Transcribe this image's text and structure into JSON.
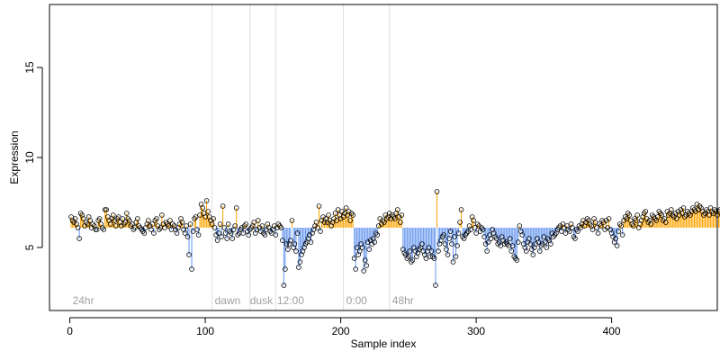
{
  "chart_data": {
    "type": "scatter",
    "title": "",
    "xlabel": "Sample index",
    "ylabel": "Expression",
    "xlim": [
      -15,
      478
    ],
    "ylim": [
      1.5,
      18.5
    ],
    "xticks": [
      0,
      100,
      200,
      300,
      400
    ],
    "yticks": [
      5,
      10,
      15
    ],
    "baseline": 6.1,
    "colors": {
      "above": "#ffa500",
      "below": "#6495ed",
      "point_stroke": "#000000",
      "divider": "#dedede",
      "region_label": "#a0a0a0"
    },
    "dividers": [
      105,
      133,
      152,
      202,
      236
    ],
    "region_labels": [
      {
        "x": 2,
        "text": "24hr"
      },
      {
        "x": 107,
        "text": "dawn"
      },
      {
        "x": 133,
        "text": "dusk"
      },
      {
        "x": 153,
        "text": "12:00"
      },
      {
        "x": 204,
        "text": "0:00"
      },
      {
        "x": 238,
        "text": "48hr"
      }
    ],
    "series": [
      {
        "values": [
          6.7,
          6.5,
          6.4,
          6.6,
          6.3,
          6.1,
          5.5,
          6.9,
          6.8,
          6.6,
          6.2,
          6.4,
          6.3,
          6.7,
          6.5,
          6.1,
          6.3,
          6.2,
          6.0,
          6.0,
          6.5,
          6.6,
          6.3,
          6.1,
          6.0,
          7.1,
          7.1,
          6.7,
          6.5,
          6.3,
          6.6,
          6.8,
          6.5,
          6.2,
          6.6,
          6.7,
          6.4,
          6.2,
          6.6,
          6.3,
          6.4,
          6.9,
          6.6,
          6.5,
          6.2,
          6.3,
          6.0,
          6.1,
          6.4,
          6.6,
          6.2,
          6.1,
          6.0,
          5.9,
          5.8,
          6.1,
          6.3,
          6.5,
          6.2,
          6.0,
          6.3,
          5.8,
          6.5,
          6.6,
          6.2,
          6.0,
          6.1,
          6.8,
          6.3,
          6.1,
          6.4,
          6.3,
          6.2,
          6.5,
          6.0,
          6.3,
          6.2,
          6.0,
          5.8,
          6.1,
          6.3,
          6.6,
          6.4,
          6.0,
          5.8,
          6.2,
          5.6,
          4.6,
          6.3,
          3.8,
          5.9,
          6.6,
          6.7,
          6.0,
          5.7,
          6.8,
          7.4,
          7.2,
          6.9,
          6.7,
          7.6,
          7.0,
          6.7,
          6.5,
          6.3,
          6.6,
          6.1,
          5.7,
          5.4,
          5.8,
          6.3,
          5.6,
          7.3,
          6.1,
          5.8,
          5.5,
          6.3,
          5.9,
          5.8,
          5.5,
          6.0,
          6.2,
          7.2,
          5.7,
          5.8,
          6.0,
          6.1,
          5.8,
          6.2,
          6.3,
          5.9,
          5.7,
          6.0,
          6.1,
          6.2,
          6.4,
          5.8,
          6.0,
          6.5,
          6.1,
          5.9,
          6.2,
          5.8,
          5.7,
          6.0,
          6.3,
          6.1,
          5.9,
          5.8,
          6.0,
          6.2,
          5.7,
          6.1,
          6.3,
          6.2,
          6.1,
          5.4,
          2.9,
          3.8,
          5.2,
          4.9,
          5.2,
          5.4,
          6.5,
          5.0,
          5.2,
          4.8,
          5.8,
          3.9,
          4.2,
          4.6,
          4.8,
          5.0,
          5.2,
          5.3,
          5.5,
          5.7,
          5.3,
          5.8,
          6.0,
          6.2,
          6.4,
          6.1,
          7.3,
          5.9,
          6.5,
          6.7,
          6.4,
          6.6,
          6.4,
          6.8,
          6.5,
          6.2,
          6.4,
          6.6,
          6.9,
          6.5,
          7.1,
          6.8,
          6.6,
          7.0,
          6.7,
          6.9,
          7.2,
          6.8,
          7.0,
          6.5,
          6.9,
          6.8,
          4.4,
          3.8,
          5.0,
          4.6,
          4.8,
          5.2,
          5.0,
          3.7,
          4.3,
          4.0,
          5.3,
          4.9,
          5.4,
          5.2,
          5.5,
          5.3,
          5.8,
          5.7,
          6.2,
          6.6,
          6.3,
          6.5,
          6.4,
          6.8,
          6.6,
          6.7,
          6.9,
          6.6,
          6.8,
          6.7,
          6.6,
          6.9,
          7.1,
          6.7,
          6.4,
          6.8,
          4.9,
          4.7,
          4.6,
          4.4,
          4.5,
          4.8,
          4.2,
          4.3,
          5.0,
          4.8,
          4.5,
          4.7,
          4.9,
          5.0,
          5.2,
          4.8,
          4.6,
          4.4,
          4.8,
          5.0,
          4.5,
          4.8,
          4.5,
          4.4,
          2.9,
          8.1,
          4.8,
          5.2,
          5.4,
          5.6,
          5.7,
          5.2,
          4.9,
          4.6,
          5.5,
          5.9,
          5.2,
          4.2,
          5.6,
          4.5,
          5.1,
          5.8,
          6.4,
          7.1,
          5.6,
          5.5,
          5.7,
          5.8,
          5.9,
          6.2,
          6.0,
          6.7,
          6.5,
          6.1,
          5.8,
          6.3,
          6.2,
          5.9,
          6.1,
          6.0,
          5.6,
          5.2,
          4.8,
          5.3,
          5.7,
          5.5,
          6.0,
          5.8,
          5.6,
          5.5,
          5.2,
          5.3,
          5.1,
          5.6,
          5.4,
          5.2,
          5.3,
          5.2,
          5.1,
          5.5,
          4.8,
          5.1,
          4.5,
          4.4,
          4.3,
          5.3,
          6.2,
          5.9,
          5.7,
          5.2,
          5.0,
          4.8,
          5.3,
          5.5,
          5.2,
          4.9,
          4.6,
          5.0,
          5.2,
          5.5,
          5.3,
          4.8,
          5.1,
          5.2,
          5.6,
          5.3,
          5.0,
          5.5,
          5.4,
          5.2,
          5.8,
          5.6,
          5.7,
          5.8,
          6.0,
          6.1,
          6.2,
          5.9,
          6.3,
          6.1,
          5.8,
          6.2,
          6.0,
          5.9,
          6.3,
          6.1,
          5.6,
          5.5,
          6.0,
          5.9,
          6.2,
          6.1,
          6.3,
          6.5,
          6.2,
          6.4,
          6.6,
          6.5,
          6.3,
          6.2,
          6.0,
          6.6,
          6.4,
          6.1,
          5.8,
          6.3,
          6.2,
          6.5,
          6.4,
          6.0,
          6.5,
          6.1,
          6.6,
          6.0,
          5.8,
          5.6,
          5.3,
          5.5,
          5.1,
          5.9,
          6.3,
          6.2,
          5.7,
          6.5,
          6.7,
          6.6,
          6.9,
          6.8,
          6.5,
          6.3,
          6.2,
          6.6,
          6.5,
          6.8,
          6.1,
          6.3,
          6.5,
          6.7,
          6.9,
          7.0,
          6.6,
          6.4,
          6.5,
          6.3,
          6.8,
          6.7,
          6.6,
          6.5,
          6.7,
          7.0,
          6.9,
          6.8,
          6.5,
          6.6,
          6.4,
          7.0,
          6.8,
          6.9,
          7.1,
          6.8,
          6.7,
          6.9,
          6.6,
          7.0,
          6.8,
          7.1,
          6.9,
          7.2,
          6.7,
          6.8,
          7.0,
          6.9,
          6.8,
          7.0,
          7.2,
          7.1,
          7.0,
          7.4,
          7.1,
          7.3,
          7.2,
          7.0,
          6.8,
          6.9,
          7.1,
          7.0,
          6.8,
          7.2,
          7.0,
          6.9,
          7.1,
          7.0,
          6.8,
          7.0,
          7.1
        ]
      }
    ]
  }
}
